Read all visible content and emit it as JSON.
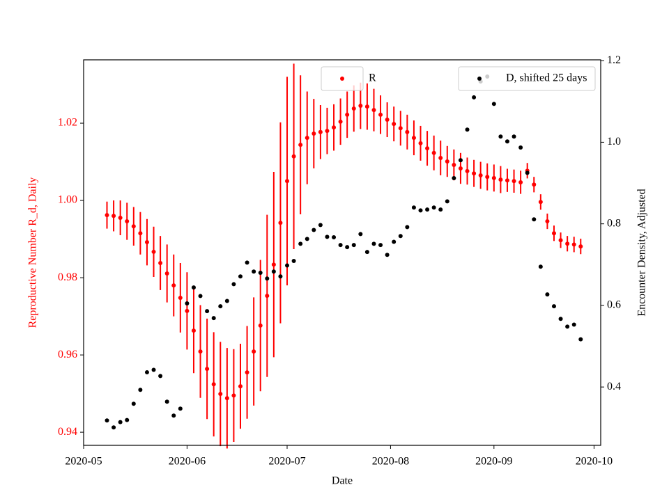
{
  "chart_data": {
    "type": "errorbar_scatter",
    "x_label": "Date",
    "y_label": "Reproductive Number R_d, Daily",
    "y2_label": "Encounter Density, Adjusted",
    "y_label_color": "#ff0000",
    "x": [
      "2020-05-08",
      "2020-05-10",
      "2020-05-12",
      "2020-05-14",
      "2020-05-16",
      "2020-05-18",
      "2020-05-20",
      "2020-05-22",
      "2020-05-24",
      "2020-05-26",
      "2020-05-28",
      "2020-05-30",
      "2020-06-01",
      "2020-06-03",
      "2020-06-05",
      "2020-06-07",
      "2020-06-09",
      "2020-06-11",
      "2020-06-13",
      "2020-06-15",
      "2020-06-17",
      "2020-06-19",
      "2020-06-21",
      "2020-06-23",
      "2020-06-25",
      "2020-06-27",
      "2020-06-29",
      "2020-07-01",
      "2020-07-03",
      "2020-07-05",
      "2020-07-07",
      "2020-07-09",
      "2020-07-11",
      "2020-07-13",
      "2020-07-15",
      "2020-07-17",
      "2020-07-19",
      "2020-07-21",
      "2020-07-23",
      "2020-07-25",
      "2020-07-27",
      "2020-07-29",
      "2020-07-31",
      "2020-08-02",
      "2020-08-04",
      "2020-08-06",
      "2020-08-08",
      "2020-08-10",
      "2020-08-12",
      "2020-08-14",
      "2020-08-16",
      "2020-08-18",
      "2020-08-20",
      "2020-08-22",
      "2020-08-24",
      "2020-08-26",
      "2020-08-28",
      "2020-08-30",
      "2020-09-01",
      "2020-09-03",
      "2020-09-05",
      "2020-09-07",
      "2020-09-09",
      "2020-09-11",
      "2020-09-13",
      "2020-09-15",
      "2020-09-17",
      "2020-09-19",
      "2020-09-21",
      "2020-09-23",
      "2020-09-25",
      "2020-09-27"
    ],
    "xlim": [
      "2020-05-01",
      "2020-10-03"
    ],
    "xticks": [
      {
        "value": "2020-05-01",
        "label": "2020-05"
      },
      {
        "value": "2020-06-01",
        "label": "2020-06"
      },
      {
        "value": "2020-07-01",
        "label": "2020-07"
      },
      {
        "value": "2020-08-01",
        "label": "2020-08"
      },
      {
        "value": "2020-09-01",
        "label": "2020-09"
      },
      {
        "value": "2020-10-01",
        "label": "2020-10"
      }
    ],
    "ylim": [
      0.9366,
      1.0364
    ],
    "yticks": [
      0.94,
      0.96,
      0.98,
      {
        "value": 1,
        "label": "1.00"
      },
      1.02
    ],
    "y2lim": [
      0.257,
      1.202
    ],
    "y2ticks": [
      0.4,
      0.6,
      0.8,
      {
        "value": 1,
        "label": "1.0"
      },
      1.2
    ],
    "series": [
      {
        "name": "R",
        "color": "#ff0000",
        "legend_loc": "upper center",
        "values": [
          0.9962,
          0.996,
          0.9955,
          0.9946,
          0.9933,
          0.9915,
          0.9892,
          0.9867,
          0.9838,
          0.9811,
          0.978,
          0.9748,
          0.9714,
          0.9663,
          0.9609,
          0.9564,
          0.9524,
          0.9499,
          0.9488,
          0.9495,
          0.9519,
          0.9555,
          0.9609,
          0.9676,
          0.9753,
          0.9834,
          0.9942,
          1.005,
          1.0114,
          1.0144,
          1.0162,
          1.0173,
          1.0177,
          1.018,
          1.0189,
          1.0204,
          1.0222,
          1.0238,
          1.0245,
          1.0243,
          1.0234,
          1.0222,
          1.0209,
          1.0198,
          1.0187,
          1.0177,
          1.0162,
          1.0148,
          1.0135,
          1.0123,
          1.011,
          1.0101,
          1.0092,
          1.0083,
          1.0076,
          1.007,
          1.0065,
          1.0061,
          1.0058,
          1.0054,
          1.0052,
          1.005,
          1.0047,
          1.0077,
          1.0041,
          0.9996,
          0.9946,
          0.9915,
          0.9897,
          0.9888,
          0.9886,
          0.9881
        ],
        "errors": [
          0.0035,
          0.004,
          0.0045,
          0.0048,
          0.005,
          0.0055,
          0.006,
          0.0065,
          0.007,
          0.0075,
          0.008,
          0.009,
          0.01,
          0.011,
          0.012,
          0.013,
          0.0135,
          0.0135,
          0.013,
          0.012,
          0.011,
          0.012,
          0.014,
          0.017,
          0.021,
          0.024,
          0.026,
          0.027,
          0.024,
          0.018,
          0.012,
          0.009,
          0.007,
          0.006,
          0.006,
          0.006,
          0.006,
          0.006,
          0.006,
          0.006,
          0.0055,
          0.005,
          0.0045,
          0.0045,
          0.0045,
          0.0045,
          0.0045,
          0.0045,
          0.0045,
          0.0045,
          0.0045,
          0.004,
          0.004,
          0.004,
          0.0035,
          0.0035,
          0.0035,
          0.0035,
          0.0035,
          0.0035,
          0.003,
          0.003,
          0.003,
          0.002,
          0.002,
          0.002,
          0.002,
          0.002,
          0.002,
          0.002,
          0.002,
          0.002
        ]
      },
      {
        "name": "D, shifted 25 days",
        "color": "#000000",
        "axis": "y2",
        "legend_loc": "upper right",
        "values": [
          0.318,
          0.301,
          0.314,
          0.319,
          0.359,
          0.393,
          0.436,
          0.442,
          0.427,
          0.364,
          0.33,
          0.347,
          0.605,
          0.644,
          0.623,
          0.586,
          0.569,
          0.598,
          0.611,
          0.652,
          0.671,
          0.705,
          0.683,
          0.68,
          0.666,
          0.683,
          0.671,
          0.698,
          0.709,
          0.751,
          0.763,
          0.785,
          0.797,
          0.768,
          0.767,
          0.748,
          0.743,
          0.748,
          0.775,
          0.731,
          0.751,
          0.748,
          0.724,
          0.756,
          0.77,
          0.792,
          0.84,
          0.833,
          0.835,
          0.84,
          0.835,
          0.855,
          0.912,
          0.956,
          1.031,
          1.11,
          1.149,
          1.161,
          1.094,
          1.014,
          1.002,
          1.014,
          0.987,
          0.925,
          0.811,
          0.695,
          0.627,
          0.598,
          0.567,
          0.548,
          0.553,
          0.517
        ]
      }
    ]
  }
}
